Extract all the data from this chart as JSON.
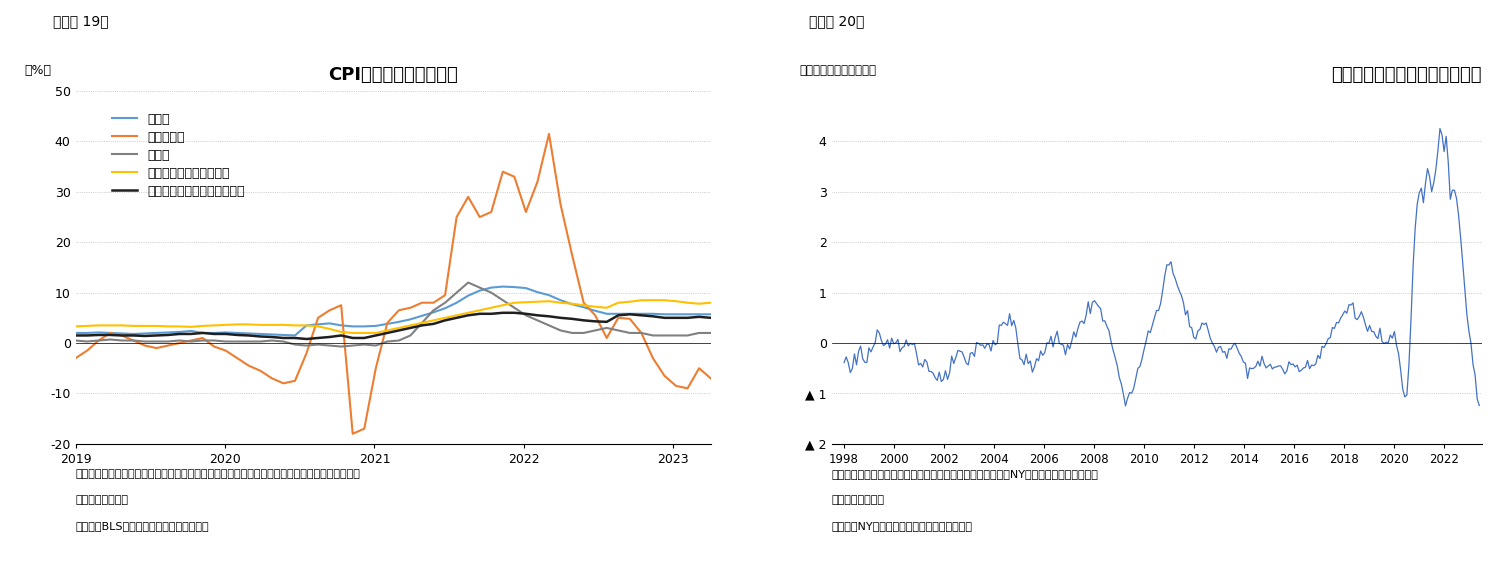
{
  "fig19": {
    "title": "CPI内訳（前年同月比）",
    "label_top": "（図表 19）",
    "ylabel": "（%）",
    "note1": "（注）コア財は食料品、エネルギーを除く商品価格、コアサービスはエネルギーサービスを除く",
    "note2": "　　サービス価格",
    "note3": "（資料）BLSよりニッセイ基礎研究所作成",
    "ylim": [
      -20,
      50
    ],
    "yticks": [
      -20,
      -10,
      0,
      10,
      20,
      30,
      40,
      50
    ],
    "series": {
      "食料品": {
        "color": "#5B9BD5",
        "linewidth": 1.5,
        "data": [
          2.0,
          2.0,
          2.1,
          2.0,
          1.9,
          1.8,
          1.9,
          2.0,
          2.1,
          2.2,
          2.4,
          2.0,
          2.0,
          2.1,
          2.0,
          1.9,
          1.8,
          1.7,
          1.6,
          1.5,
          3.5,
          3.7,
          3.9,
          3.5,
          3.3,
          3.3,
          3.4,
          3.8,
          4.2,
          4.7,
          5.4,
          6.1,
          6.9,
          8.0,
          9.4,
          10.4,
          11.0,
          11.2,
          11.1,
          10.9,
          10.1,
          9.5,
          8.5,
          7.7,
          7.1,
          6.4,
          5.8,
          5.8,
          5.8,
          5.8,
          5.8,
          5.7,
          5.7,
          5.7,
          5.7,
          5.7
        ]
      },
      "エネルギー": {
        "color": "#ED7D31",
        "linewidth": 1.5,
        "data": [
          -3.0,
          -1.5,
          0.5,
          2.0,
          1.5,
          0.5,
          -0.5,
          -1.0,
          -0.5,
          0.0,
          0.5,
          1.0,
          -0.7,
          -1.5,
          -3.0,
          -4.5,
          -5.5,
          -7.0,
          -8.0,
          -7.5,
          -2.0,
          5.0,
          6.5,
          7.5,
          -18.0,
          -17.0,
          -5.0,
          4.0,
          6.5,
          7.0,
          8.0,
          8.0,
          9.5,
          25.0,
          29.0,
          25.0,
          26.0,
          34.0,
          33.0,
          26.0,
          32.0,
          41.5,
          27.5,
          17.5,
          8.0,
          5.5,
          1.0,
          5.0,
          4.8,
          2.0,
          -3.0,
          -6.5,
          -8.5,
          -9.0,
          -5.0,
          -7.0
        ]
      },
      "コア財": {
        "color": "#808080",
        "linewidth": 1.5,
        "data": [
          0.5,
          0.3,
          0.5,
          0.7,
          0.5,
          0.5,
          0.3,
          0.3,
          0.3,
          0.5,
          0.3,
          0.5,
          0.5,
          0.3,
          0.3,
          0.3,
          0.3,
          0.5,
          0.3,
          -0.3,
          -0.5,
          -0.3,
          -0.5,
          -0.7,
          -0.5,
          -0.3,
          -0.5,
          0.3,
          0.5,
          1.5,
          4.0,
          6.5,
          8.0,
          10.0,
          12.0,
          11.0,
          10.0,
          8.5,
          7.0,
          5.5,
          4.5,
          3.5,
          2.5,
          2.0,
          2.0,
          2.5,
          3.0,
          2.5,
          2.0,
          2.0,
          1.5,
          1.5,
          1.5,
          1.5,
          2.0,
          2.0
        ]
      },
      "コアサービス（住居費）": {
        "color": "#FFC000",
        "linewidth": 1.5,
        "data": [
          3.3,
          3.4,
          3.5,
          3.5,
          3.5,
          3.4,
          3.4,
          3.4,
          3.3,
          3.3,
          3.2,
          3.4,
          3.5,
          3.6,
          3.7,
          3.7,
          3.6,
          3.6,
          3.6,
          3.5,
          3.5,
          3.3,
          2.8,
          2.2,
          2.0,
          2.0,
          2.0,
          2.5,
          3.0,
          3.5,
          4.0,
          4.5,
          5.0,
          5.5,
          6.0,
          6.5,
          7.0,
          7.5,
          8.0,
          8.1,
          8.2,
          8.3,
          8.0,
          7.8,
          7.5,
          7.2,
          7.0,
          8.0,
          8.2,
          8.5,
          8.5,
          8.5,
          8.3,
          8.0,
          7.8,
          8.0
        ]
      },
      "コアサービス（除く住居費）": {
        "color": "#1F1F1F",
        "linewidth": 1.8,
        "data": [
          1.5,
          1.5,
          1.6,
          1.6,
          1.5,
          1.5,
          1.4,
          1.5,
          1.6,
          1.8,
          1.8,
          2.0,
          1.8,
          1.8,
          1.6,
          1.5,
          1.3,
          1.2,
          1.0,
          1.0,
          0.8,
          1.0,
          1.2,
          1.5,
          1.0,
          1.0,
          1.5,
          2.0,
          2.5,
          3.0,
          3.5,
          3.8,
          4.5,
          5.0,
          5.5,
          5.8,
          5.8,
          6.0,
          6.0,
          5.8,
          5.5,
          5.3,
          5.0,
          4.8,
          4.5,
          4.3,
          4.2,
          5.5,
          5.7,
          5.5,
          5.3,
          5.0,
          5.0,
          5.0,
          5.2,
          5.0
        ]
      }
    },
    "x_start": 2019.0,
    "x_end": 2023.25,
    "xticks": [
      2019,
      2020,
      2021,
      2022,
      2023
    ]
  },
  "fig20": {
    "title": "世界サプライチェーン圧力指数",
    "label_top": "（図表 20）",
    "ylabel": "（平均からの標準偏差）",
    "note1": "（注）世界の輸送コストおよび購買担当者景気指数などからNY連銀が推計した供給制約",
    "note2": "　　を図る指数。",
    "note3": "（資料）NY連銀よりニッセイ基礎研究所作成",
    "ylim": [
      -2,
      5
    ],
    "yticks": [
      4,
      3,
      2,
      1,
      0,
      -1,
      -2
    ],
    "ytick_labels": [
      "4",
      "3",
      "2",
      "1",
      "0",
      "▲ 1",
      "▲ 2"
    ],
    "color": "#4472C4",
    "linewidth": 0.9,
    "xticks": [
      1998,
      2000,
      2002,
      2004,
      2006,
      2008,
      2010,
      2012,
      2014,
      2016,
      2018,
      2020,
      2022
    ],
    "x_start": 1997.5,
    "x_end": 2023.5
  }
}
